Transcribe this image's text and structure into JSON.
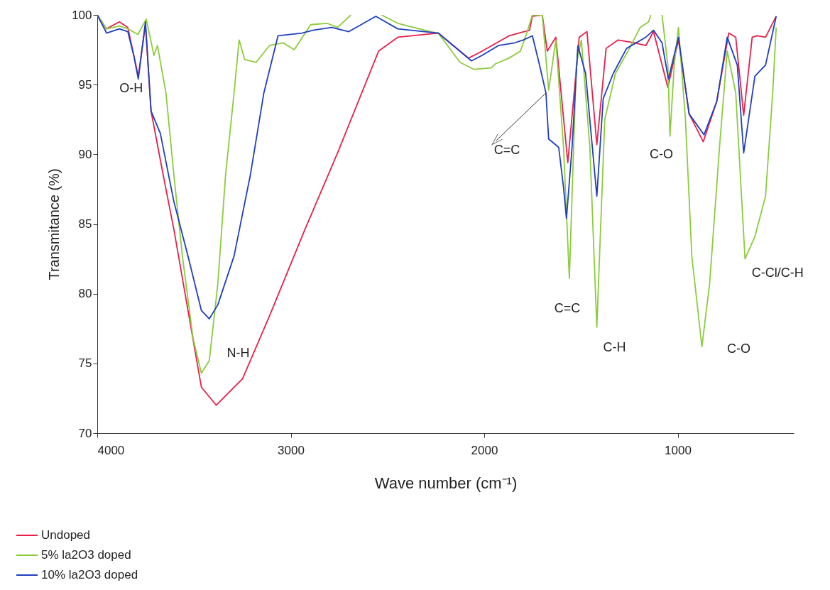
{
  "chart_data": {
    "type": "line",
    "xlabel": "Wave number (cm⁻¹)",
    "ylabel": "Transmitance (%)",
    "xlim": [
      4000,
      400
    ],
    "ylim": [
      70,
      100
    ],
    "xticks": [
      4000,
      3000,
      2000,
      1000
    ],
    "yticks": [
      70,
      75,
      80,
      85,
      90,
      95,
      100
    ],
    "grid": false,
    "legend": "bottom left",
    "series": [
      {
        "name": "Undoped",
        "color": "#e8204a",
        "x": [
          4000,
          3952,
          3886,
          3842,
          3788,
          3751,
          3722,
          3659,
          3604,
          3531,
          3462,
          3385,
          3249,
          3110,
          2927,
          2758,
          2546,
          2447,
          2238,
          2081,
          2011,
          1872,
          1766,
          1751,
          1700,
          1674,
          1630,
          1568,
          1509,
          1469,
          1418,
          1370,
          1308,
          1223,
          1165,
          1125,
          1051,
          996,
          941,
          868,
          798,
          736,
          700,
          659,
          615,
          590,
          546,
          491
        ],
        "values": [
          100,
          99.0,
          99.5,
          99.1,
          95.6,
          99.3,
          93.1,
          88.5,
          84.6,
          78.8,
          73.3,
          72.0,
          73.9,
          78.4,
          84.6,
          90.1,
          97.4,
          98.4,
          98.7,
          96.9,
          97.4,
          98.5,
          98.9,
          99.9,
          100,
          97.4,
          98.4,
          89.4,
          98.4,
          98.8,
          90.7,
          97.6,
          98.2,
          98.0,
          97.8,
          98.8,
          94.8,
          98.2,
          92.9,
          90.9,
          93.8,
          98.7,
          98.4,
          92.8,
          98.4,
          98.5,
          98.4,
          99.9
        ]
      },
      {
        "name": "5% la2O3 doped",
        "color": "#8ccc3c",
        "x": [
          4000,
          3952,
          3886,
          3842,
          3790,
          3747,
          3707,
          3689,
          3645,
          3604,
          3560,
          3505,
          3462,
          3421,
          3377,
          3337,
          3293,
          3267,
          3238,
          3179,
          3110,
          3040,
          2982,
          2897,
          2813,
          2758,
          2689,
          2610,
          2531,
          2447,
          2278,
          2238,
          2125,
          2055,
          1963,
          1941,
          1872,
          1813,
          1780,
          1751,
          1700,
          1667,
          1630,
          1590,
          1560,
          1524,
          1498,
          1454,
          1418,
          1377,
          1322,
          1249,
          1194,
          1150,
          1139,
          1110,
          1081,
          1051,
          1040,
          1018,
          996,
          960,
          927,
          875,
          835,
          784,
          744,
          700,
          652,
          601,
          546,
          509,
          491
        ],
        "values": [
          100,
          99.0,
          99.2,
          99.0,
          98.6,
          99.7,
          97.1,
          97.8,
          94.4,
          88.5,
          82.7,
          76.8,
          74.3,
          75.2,
          80.7,
          88.5,
          94.4,
          98.2,
          96.8,
          96.6,
          97.8,
          98.0,
          97.5,
          99.3,
          99.4,
          99.1,
          100,
          null,
          100,
          99.4,
          98.8,
          98.7,
          96.6,
          96.1,
          96.2,
          96.5,
          96.9,
          97.4,
          98.7,
          100,
          100,
          94.6,
          98.2,
          90.5,
          81.1,
          96.4,
          98.2,
          90.5,
          77.6,
          92.5,
          95.8,
          97.6,
          99.1,
          99.5,
          100,
          null,
          100,
          96.4,
          91.3,
          96.4,
          99.1,
          92.5,
          82.7,
          76.2,
          80.7,
          90.5,
          97.4,
          94.4,
          82.5,
          84.1,
          87.0,
          94.4,
          99.1
        ]
      },
      {
        "name": "10% la2O3 doped",
        "color": "#1f3fbf",
        "x": [
          4000,
          3952,
          3886,
          3842,
          3810,
          3788,
          3751,
          3722,
          3674,
          3604,
          3531,
          3462,
          3421,
          3377,
          3293,
          3209,
          3139,
          3066,
          2941,
          2886,
          2788,
          2700,
          2560,
          2447,
          2238,
          2066,
          2011,
          1927,
          1842,
          1799,
          1751,
          1714,
          1681,
          1667,
          1615,
          1590,
          1575,
          1546,
          1516,
          1476,
          1418,
          1385,
          1333,
          1264,
          1165,
          1125,
          1081,
          1048,
          996,
          941,
          864,
          798,
          744,
          692,
          659,
          601,
          546,
          491
        ],
        "values": [
          100,
          98.7,
          99.0,
          98.8,
          97.0,
          95.4,
          99.5,
          93.1,
          91.5,
          86.6,
          82.7,
          78.8,
          78.2,
          79.2,
          82.7,
          88.5,
          94.4,
          98.5,
          98.7,
          98.9,
          99.1,
          98.8,
          99.9,
          99.0,
          98.7,
          96.7,
          97.1,
          97.8,
          98.0,
          98.2,
          98.5,
          96.4,
          94.4,
          91.1,
          90.5,
          87.6,
          85.4,
          90.5,
          97.8,
          95.8,
          87.0,
          94.0,
          95.8,
          97.6,
          98.4,
          98.9,
          98.0,
          95.4,
          98.4,
          92.9,
          91.4,
          93.8,
          98.4,
          96.4,
          90.1,
          95.6,
          96.4,
          99.9
        ]
      }
    ],
    "annotations": [
      {
        "text": "O-H",
        "x": 3788,
        "y": 95.4
      },
      {
        "text": "N-H",
        "x": 3462,
        "y": 74.3
      },
      {
        "text": "C=C",
        "x": 1681,
        "y": 94.4
      },
      {
        "text": "C=C",
        "x": 1560,
        "y": 81.1
      },
      {
        "text": "C-H",
        "x": 1418,
        "y": 77.6
      },
      {
        "text": "C-O",
        "x": 1040,
        "y": 91.3
      },
      {
        "text": "C-O",
        "x": 875,
        "y": 76.2
      },
      {
        "text": "C-Cl/C-H",
        "x": 652,
        "y": 82.5
      }
    ]
  }
}
